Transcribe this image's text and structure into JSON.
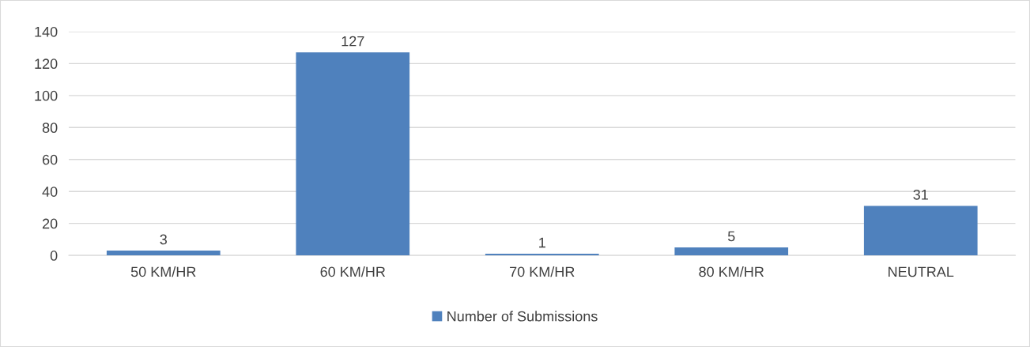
{
  "chart_data": {
    "type": "bar",
    "categories": [
      "50 KM/HR",
      "60 KM/HR",
      "70 KM/HR",
      "80 KM/HR",
      "NEUTRAL"
    ],
    "series": [
      {
        "name": "Number of Submissions",
        "color": "#4f81bd",
        "values": [
          3,
          127,
          1,
          5,
          31
        ]
      }
    ],
    "ylim": [
      0,
      140
    ],
    "yticks": [
      0,
      20,
      40,
      60,
      80,
      100,
      120,
      140
    ],
    "grid": "y",
    "legend": "bottom",
    "data_labels": true
  }
}
